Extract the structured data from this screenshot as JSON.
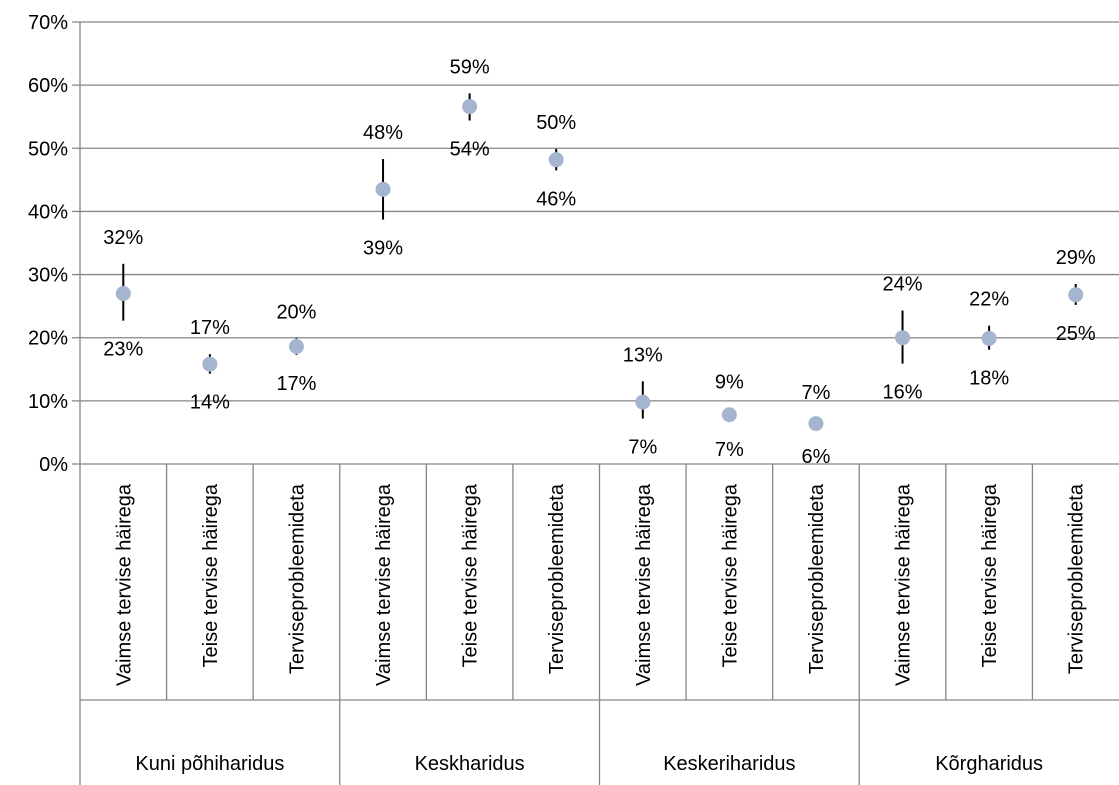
{
  "chart_data": {
    "type": "scatter",
    "ylim": [
      0,
      70
    ],
    "y_ticks": [
      "0%",
      "10%",
      "20%",
      "30%",
      "40%",
      "50%",
      "60%",
      "70%"
    ],
    "grid": true,
    "categories": [
      "Vaimse tervise häirega",
      "Teise tervise häirega",
      "Terviseprobleemideta",
      "Vaimse tervise häirega",
      "Teise tervise häirega",
      "Terviseprobleemideta",
      "Vaimse tervise häirega",
      "Teise tervise häirega",
      "Terviseprobleemideta",
      "Vaimse tervise häirega",
      "Teise tervise häirega",
      "Terviseprobleemideta"
    ],
    "groups": [
      {
        "label": "Kuni põhiharidus",
        "span": 3
      },
      {
        "label": "Keskharidus",
        "span": 3
      },
      {
        "label": "Keskeriharidus",
        "span": 3
      },
      {
        "label": "Kõrgharidus",
        "span": 3
      }
    ],
    "values": [
      27,
      15.8,
      18.6,
      43.5,
      56.6,
      48.2,
      9.8,
      7.8,
      6.4,
      20,
      19.9,
      26.8
    ],
    "upper": [
      31.7,
      17.4,
      19.9,
      48.3,
      58.7,
      49.9,
      13.1,
      8.8,
      7.1,
      24.3,
      21.9,
      28.5
    ],
    "lower": [
      22.7,
      14.3,
      17.3,
      38.7,
      54.4,
      46.5,
      7.2,
      6.8,
      5.7,
      15.9,
      18.1,
      25.2
    ],
    "upper_labels": [
      "32%",
      "17%",
      "20%",
      "48%",
      "59%",
      "50%",
      "13%",
      "9%",
      "7%",
      "24%",
      "22%",
      "29%"
    ],
    "lower_labels": [
      "23%",
      "14%",
      "17%",
      "39%",
      "54%",
      "46%",
      "7%",
      "7%",
      "6%",
      "16%",
      "18%",
      "25%"
    ],
    "colors": {
      "marker": "#a5b5d0",
      "grid": "#868686",
      "errorbar": "#000000"
    }
  }
}
